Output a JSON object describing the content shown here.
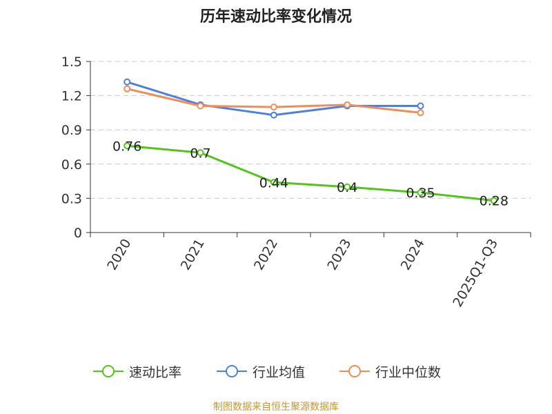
{
  "chart_data": {
    "type": "line",
    "title": "历年速动比率变化情况",
    "categories": [
      "2020",
      "2021",
      "2022",
      "2023",
      "2024",
      "2025Q1-Q3"
    ],
    "y_ticks": [
      "0",
      "0.3",
      "0.6",
      "0.9",
      "1.2",
      "1.5"
    ],
    "ylim": [
      0,
      1.5
    ],
    "grid": true,
    "legend_position": "bottom",
    "series": [
      {
        "name": "速动比率",
        "color": "#52c41a",
        "values": [
          0.76,
          0.7,
          0.44,
          0.4,
          0.35,
          0.28
        ],
        "data_labels": [
          "0.76",
          "0.7",
          "0.44",
          "0.4",
          "0.35",
          "0.28"
        ]
      },
      {
        "name": "行业均值",
        "color": "#4e7fe0",
        "values": [
          1.32,
          1.12,
          1.03,
          1.11,
          1.11,
          null
        ]
      },
      {
        "name": "行业中位数",
        "color": "#f28b54",
        "values": [
          1.26,
          1.11,
          1.1,
          1.12,
          1.05,
          null
        ]
      }
    ]
  },
  "footer": {
    "source": "制图数据来自恒生聚源数据库"
  }
}
